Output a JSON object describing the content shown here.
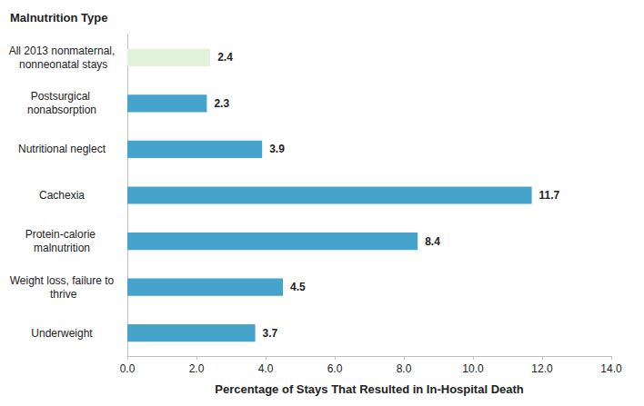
{
  "chart_data": {
    "type": "bar",
    "orientation": "horizontal",
    "y_label": "Malnutrition Type",
    "x_label": "Percentage of Stays That Resulted in In-Hospital Death",
    "categories": [
      "All 2013 nonmaternal, nonneonatal stays",
      "Postsurgical nonabsorption",
      "Nutritional neglect",
      "Cachexia",
      "Protein-calorie malnutrition",
      "Weight loss, failure to thrive",
      "Underweight"
    ],
    "values": [
      2.4,
      2.3,
      3.9,
      11.7,
      8.4,
      4.5,
      3.7
    ],
    "colors": [
      "#e2f3dc",
      "#46a3cc",
      "#46a3cc",
      "#46a3cc",
      "#46a3cc",
      "#46a3cc",
      "#46a3cc"
    ],
    "xlim": [
      0,
      14
    ],
    "xticks": [
      {
        "value": 0,
        "label": "0.0"
      },
      {
        "value": 2,
        "label": "2.0"
      },
      {
        "value": 4,
        "label": "4.0"
      },
      {
        "value": 6,
        "label": "6.0"
      },
      {
        "value": 8,
        "label": "8.0"
      },
      {
        "value": 10,
        "label": "10.0"
      },
      {
        "value": 12,
        "label": "12.0"
      },
      {
        "value": 14,
        "label": "14.0"
      }
    ],
    "grid": false,
    "data_labels": true
  }
}
